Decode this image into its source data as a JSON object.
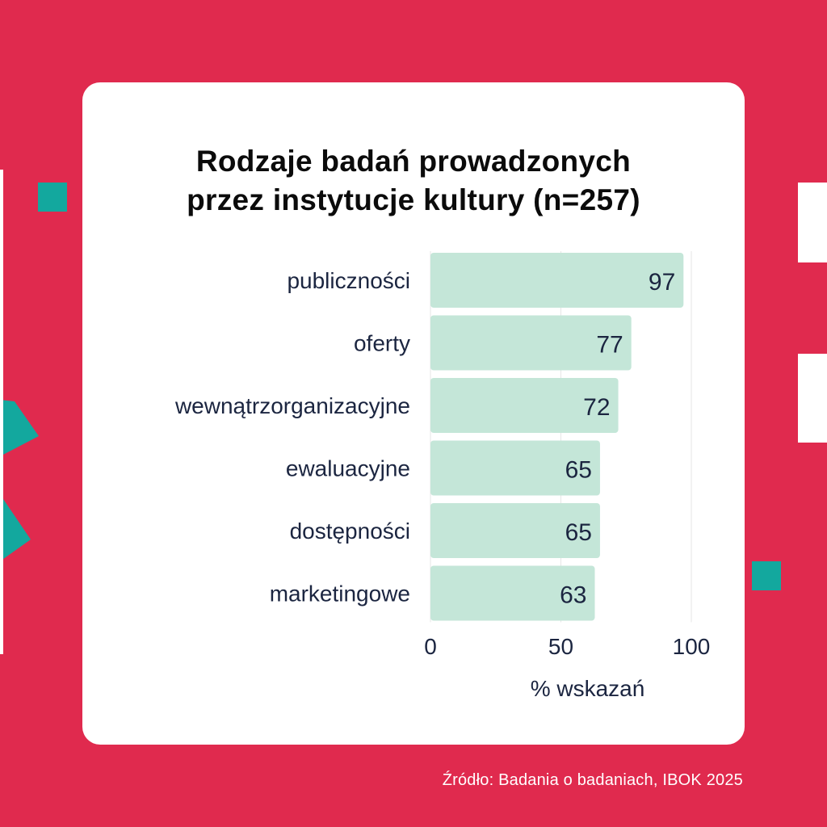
{
  "colors": {
    "background": "#E02A4E",
    "card": "#FFFFFF",
    "bar": "#C4E6D8",
    "text": "#1B2540",
    "title": "#0B0B0B",
    "accent_teal": "#13A89E",
    "gridline": "#E6E6E6",
    "source_text": "#FFFFFF"
  },
  "chart_data": {
    "type": "bar",
    "orientation": "horizontal",
    "title_lines": [
      "Rodzaje badań prowadzonych",
      "przez instytucje kultury (n=257)"
    ],
    "categories": [
      "publiczności",
      "oferty",
      "wewnątrzorganizacyjne",
      "ewaluacyjne",
      "dostępności",
      "marketingowe"
    ],
    "values": [
      97,
      77,
      72,
      65,
      65,
      63
    ],
    "xlabel": "% wskazań",
    "ylabel": "",
    "xlim": [
      0,
      100
    ],
    "x_ticks": [
      0,
      50,
      100
    ],
    "data_labels": true,
    "grid": true,
    "legend": "none"
  },
  "footer": {
    "source": "Źródło: Badania o badaniach, IBOK 2025"
  }
}
